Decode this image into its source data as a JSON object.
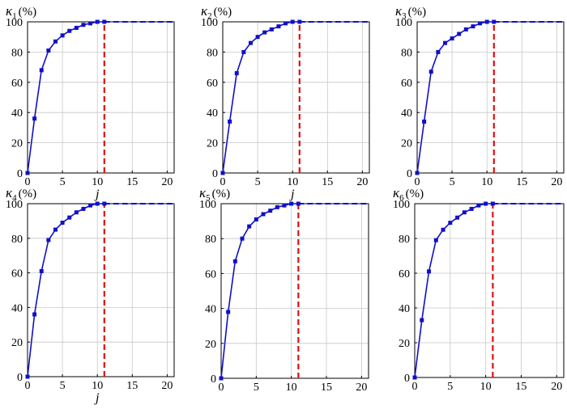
{
  "chart_data": [
    {
      "type": "line",
      "ylabel": {
        "symbol": "κ",
        "subscript": "1",
        "unit": "(%)"
      },
      "xlabel": "j",
      "xlim": [
        0,
        21
      ],
      "ylim": [
        0,
        100
      ],
      "xticks": [
        "0",
        "5",
        "10",
        "15",
        "20"
      ],
      "yticks": [
        "0",
        "20",
        "40",
        "60",
        "80",
        "100"
      ],
      "grid": true,
      "x": [
        0,
        1,
        2,
        3,
        4,
        5,
        6,
        7,
        8,
        9,
        10,
        11
      ],
      "y": [
        0,
        36,
        68,
        81,
        87,
        91,
        94,
        96,
        98,
        99,
        100,
        100
      ],
      "extension": {
        "from_x": 11,
        "to_x": 21,
        "y": 100,
        "style": "dashed"
      },
      "threshold": {
        "x": 11,
        "style": "dashed"
      },
      "colors": {
        "series": "#1010c8",
        "threshold": "#e01010"
      }
    },
    {
      "type": "line",
      "ylabel": {
        "symbol": "κ",
        "subscript": "2",
        "unit": "(%)"
      },
      "xlabel": "j",
      "xlim": [
        0,
        21
      ],
      "ylim": [
        0,
        100
      ],
      "xticks": [
        "0",
        "5",
        "10",
        "15",
        "20"
      ],
      "yticks": [
        "0",
        "20",
        "40",
        "60",
        "80",
        "100"
      ],
      "grid": true,
      "x": [
        0,
        1,
        2,
        3,
        4,
        5,
        6,
        7,
        8,
        9,
        10,
        11
      ],
      "y": [
        0,
        34,
        66,
        80,
        86,
        90,
        93,
        95,
        97,
        99,
        100,
        100
      ],
      "extension": {
        "from_x": 11,
        "to_x": 21,
        "y": 100,
        "style": "dashed"
      },
      "threshold": {
        "x": 11,
        "style": "dashed"
      },
      "colors": {
        "series": "#1010c8",
        "threshold": "#e01010"
      }
    },
    {
      "type": "line",
      "ylabel": {
        "symbol": "κ",
        "subscript": "3",
        "unit": "(%)"
      },
      "xlabel": "",
      "xlim": [
        0,
        21
      ],
      "ylim": [
        0,
        100
      ],
      "xticks": [
        "0",
        "5",
        "10",
        "15",
        "20"
      ],
      "yticks": [
        "0",
        "20",
        "40",
        "60",
        "80",
        "100"
      ],
      "grid": true,
      "x": [
        0,
        1,
        2,
        3,
        4,
        5,
        6,
        7,
        8,
        9,
        10,
        11
      ],
      "y": [
        0,
        34,
        67,
        80,
        86,
        89,
        92,
        95,
        97,
        99,
        100,
        100
      ],
      "extension": {
        "from_x": 11,
        "to_x": 21,
        "y": 100,
        "style": "dashed"
      },
      "threshold": {
        "x": 11,
        "style": "dashed"
      },
      "colors": {
        "series": "#1010c8",
        "threshold": "#e01010"
      }
    },
    {
      "type": "line",
      "ylabel": {
        "symbol": "κ",
        "subscript": "4",
        "unit": "(%)"
      },
      "xlabel": "j",
      "xlim": [
        0,
        21
      ],
      "ylim": [
        0,
        100
      ],
      "xticks": [
        "0",
        "5",
        "10",
        "15",
        "20"
      ],
      "yticks": [
        "0",
        "20",
        "40",
        "60",
        "80",
        "100"
      ],
      "grid": true,
      "x": [
        0,
        1,
        2,
        3,
        4,
        5,
        6,
        7,
        8,
        9,
        10,
        11
      ],
      "y": [
        0,
        36,
        61,
        79,
        85,
        89,
        92,
        95,
        97,
        99,
        100,
        100
      ],
      "extension": {
        "from_x": 11,
        "to_x": 21,
        "y": 100,
        "style": "dashed"
      },
      "threshold": {
        "x": 11,
        "style": "dashed"
      },
      "colors": {
        "series": "#1010c8",
        "threshold": "#e01010"
      }
    },
    {
      "type": "line",
      "ylabel": {
        "symbol": "κ",
        "subscript": "5",
        "unit": "(%)"
      },
      "xlabel": "",
      "xlim": [
        0,
        21
      ],
      "ylim": [
        0,
        100
      ],
      "xticks": [
        "0",
        "5",
        "10",
        "15",
        "20"
      ],
      "yticks": [
        "0",
        "20",
        "40",
        "60",
        "80",
        "100"
      ],
      "grid": true,
      "x": [
        0,
        1,
        2,
        3,
        4,
        5,
        6,
        7,
        8,
        9,
        10,
        11
      ],
      "y": [
        0,
        38,
        67,
        80,
        87,
        91,
        94,
        96,
        98,
        99,
        100,
        100
      ],
      "extension": {
        "from_x": 11,
        "to_x": 21,
        "y": 100,
        "style": "dashed"
      },
      "threshold": {
        "x": 11,
        "style": "dashed"
      },
      "colors": {
        "series": "#1010c8",
        "threshold": "#e01010"
      }
    },
    {
      "type": "line",
      "ylabel": {
        "symbol": "κ",
        "subscript": "6",
        "unit": "(%)"
      },
      "xlabel": "",
      "xlim": [
        0,
        21
      ],
      "ylim": [
        0,
        100
      ],
      "xticks": [
        "0",
        "5",
        "10",
        "15",
        "20"
      ],
      "yticks": [
        "0",
        "20",
        "40",
        "60",
        "80",
        "100"
      ],
      "grid": true,
      "x": [
        0,
        1,
        2,
        3,
        4,
        5,
        6,
        7,
        8,
        9,
        10,
        11
      ],
      "y": [
        0,
        33,
        61,
        79,
        85,
        89,
        92,
        95,
        97,
        99,
        100,
        100
      ],
      "extension": {
        "from_x": 11,
        "to_x": 21,
        "y": 100,
        "style": "dashed"
      },
      "threshold": {
        "x": 11,
        "style": "dashed"
      },
      "colors": {
        "series": "#1010c8",
        "threshold": "#e01010"
      }
    }
  ]
}
